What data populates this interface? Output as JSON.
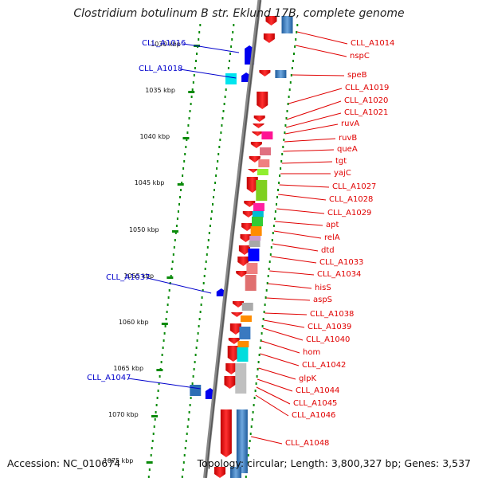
{
  "title": "Clostridium botulinum B str. Eklund 17B, complete genome",
  "footer": {
    "accession": "Accession: NC_010674",
    "stats": "Topology: circular; Length: 3,800,327 bp; Genes: 3,537"
  },
  "ticks": [
    "1030 kbp",
    "1035 kbp",
    "1040 kbp",
    "1045 kbp",
    "1050 kbp",
    "1055 kbp",
    "1060 kbp",
    "1065 kbp",
    "1070 kbp",
    "1075 kbp"
  ],
  "right_labels": [
    "CLL_A1014",
    "nspC",
    "speB",
    "CLL_A1019",
    "CLL_A1020",
    "CLL_A1021",
    "ruvA",
    "ruvB",
    "queA",
    "tgt",
    "yajC",
    "CLL_A1027",
    "CLL_A1028",
    "CLL_A1029",
    "apt",
    "relA",
    "dtd",
    "CLL_A1033",
    "CLL_A1034",
    "hisS",
    "aspS",
    "CLL_A1038",
    "CLL_A1039",
    "CLL_A1040",
    "hom",
    "CLL_A1042",
    "glpK",
    "CLL_A1044",
    "CLL_A1045",
    "CLL_A1046",
    "CLL_A1048"
  ],
  "left_labels": [
    "CLL_A1016",
    "CLL_A1018",
    "CLL_A1037",
    "CLL_A1047"
  ],
  "colors": {
    "forward": "#ee0000",
    "reverse": "#2e6fb5",
    "left_feature": "#0000ee",
    "label_red": "#e00000",
    "label_blue": "#0000cc",
    "tick_green": "#0a8a0a"
  }
}
